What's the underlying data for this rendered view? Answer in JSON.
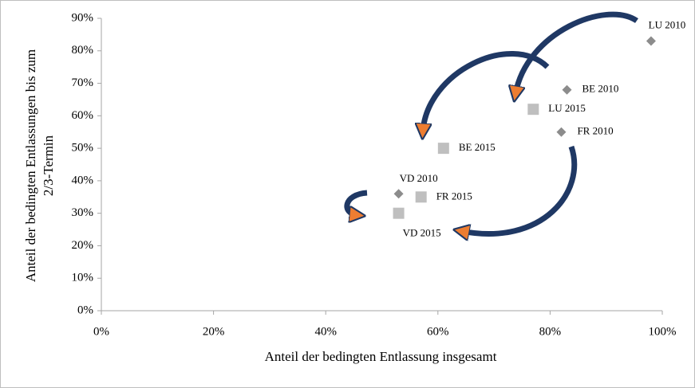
{
  "chart_data": {
    "type": "scatter",
    "x_label": "Anteil der bedingten Entlassung insgesamt",
    "y_label": [
      "Anteil der bedingten Entlassungen bis zum",
      "2/3-Termin"
    ],
    "xlim": [
      0,
      100
    ],
    "xticks": [
      {
        "value": 0,
        "label": "0%"
      },
      {
        "value": 20,
        "label": "20%"
      },
      {
        "value": 40,
        "label": "40%"
      },
      {
        "value": 60,
        "label": "60%"
      },
      {
        "value": 80,
        "label": "80%"
      },
      {
        "value": 100,
        "label": "100%"
      }
    ],
    "ylim": [
      0,
      90
    ],
    "yticks": [
      {
        "value": 0,
        "label": "0%"
      },
      {
        "value": 10,
        "label": "10%"
      },
      {
        "value": 20,
        "label": "20%"
      },
      {
        "value": 30,
        "label": "30%"
      },
      {
        "value": 40,
        "label": "40%"
      },
      {
        "value": 50,
        "label": "50%"
      },
      {
        "value": 60,
        "label": "60%"
      },
      {
        "value": 70,
        "label": "70%"
      },
      {
        "value": 80,
        "label": "80%"
      },
      {
        "value": 90,
        "label": "90%"
      }
    ],
    "grid": false,
    "series": [
      {
        "marker": "diamond",
        "color": "#8c8c8c",
        "x": [
          98,
          83,
          82,
          53
        ],
        "values": [
          83,
          68,
          55,
          36
        ],
        "labels": [
          "LU 2010",
          "BE 2010",
          "FR 2010",
          "VD 2010"
        ]
      },
      {
        "marker": "square",
        "color": "#bfbfbf",
        "x": [
          77,
          61,
          57,
          53
        ],
        "values": [
          62,
          50,
          35,
          30
        ],
        "labels": [
          "LU 2015",
          "BE 2015",
          "FR 2015",
          "VD 2015"
        ]
      }
    ]
  }
}
